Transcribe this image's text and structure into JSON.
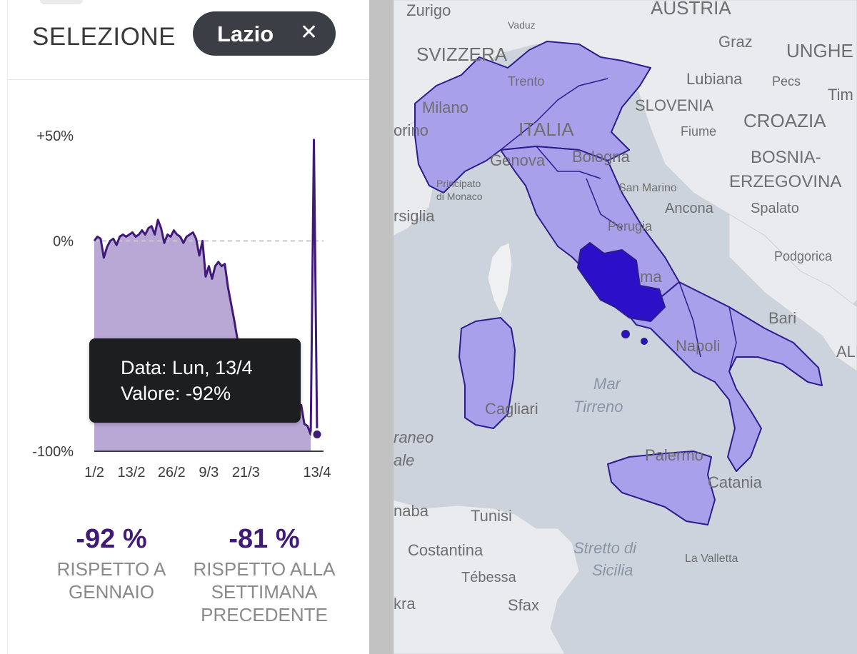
{
  "panel": {
    "selection_label": "SELEZIONE",
    "chip": {
      "label": "Lazio",
      "close_icon": "close-icon"
    }
  },
  "chart_data": {
    "type": "area",
    "x_ticks": [
      "1/2",
      "13/2",
      "26/2",
      "9/3",
      "21/3",
      "13/4"
    ],
    "y_ticks": [
      "+50%",
      "0%",
      "-100%"
    ],
    "ylim": [
      -100,
      50
    ],
    "x_first": "2020-02-01",
    "x_last": "2020-04-13",
    "values": [
      0,
      2,
      1,
      -8,
      -3,
      0,
      1,
      -2,
      2,
      3,
      2,
      3,
      4,
      2,
      3,
      5,
      3,
      6,
      7,
      3,
      10,
      6,
      -1,
      3,
      2,
      5,
      3,
      2,
      -1,
      2,
      3,
      4,
      1,
      -7,
      0,
      -17,
      -12,
      -18,
      -12,
      -10,
      -12,
      -11,
      -22,
      -30,
      -38,
      -47,
      -60,
      -63,
      -69,
      -72,
      -72,
      -73,
      -76,
      -77,
      -80,
      -79,
      -80,
      -81,
      -80,
      -83,
      -82,
      -80,
      -82,
      -81,
      -79,
      -78,
      -87,
      -88,
      -92,
      48,
      -92
    ],
    "color_line": "#3f1a78",
    "color_fill": "#b9a8d6",
    "highlight": {
      "date": "2020-04-13",
      "value": -92
    }
  },
  "tooltip": {
    "line1": "Data: Lun, 13/4",
    "line2": "Valore: -92%"
  },
  "stats": [
    {
      "value": "-92 %",
      "label_lines": [
        "RISPETTO A",
        "GENNAIO"
      ]
    },
    {
      "value": "-81 %",
      "label_lines": [
        "RISPETTO ALLA",
        "SETTIMANA",
        "PRECEDENTE"
      ]
    }
  ],
  "map": {
    "colors": {
      "region": "#a9a0ec",
      "region_border": "#2c1d8c",
      "selected": "#2b10c8",
      "sea": "#ccd3dd",
      "land": "#e9ebee"
    },
    "labels": [
      "Zurigo",
      "Vaduz",
      "AUSTRIA",
      "SVIZZERA",
      "Graz",
      "UNGHE",
      "Trento",
      "Lubiana",
      "Pecs",
      "Tim",
      "Milano",
      "SLOVENIA",
      "orino",
      "ITALIA",
      "Fiume",
      "CROAZIA",
      "Genova",
      "Bologna",
      "BOSNIA-",
      "ERZEGOVINA",
      "Principato",
      "di Monaco",
      "San Marino",
      "Ancona",
      "Spalato",
      "rsiglia",
      "Perugia",
      "Podgorica",
      "ma",
      "Bari",
      "Napoli",
      "ALI",
      "Cagliari",
      "raneo",
      "ale",
      "Palermo",
      "Catania",
      "naba",
      "Tunisi",
      "Costantina",
      "La Valletta",
      "Tébessa",
      "kra",
      "Sfax"
    ],
    "sea_labels": [
      "Mar",
      "Tirreno",
      "Stretto di",
      "Sicilia"
    ]
  }
}
